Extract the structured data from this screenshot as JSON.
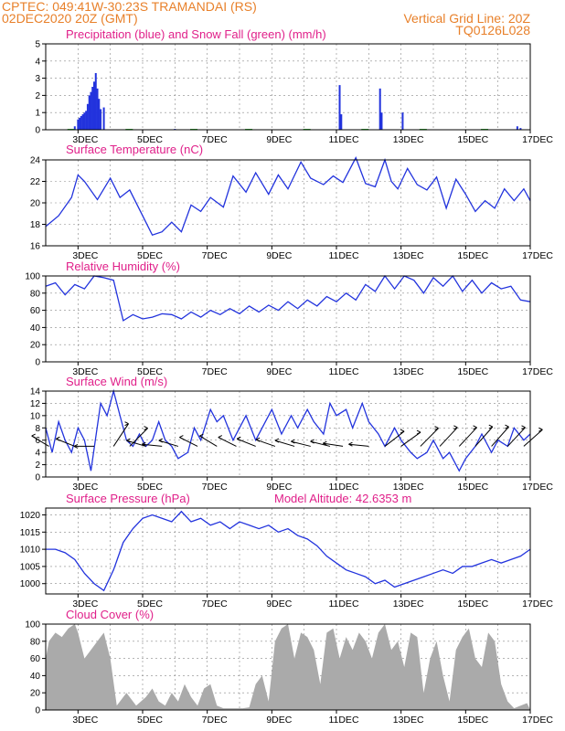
{
  "header": {
    "station_line": "CPTEC:   049:41W-30:23S   TRAMANDAI (RS)",
    "date_line": "02DEC2020 20Z (GMT)",
    "grid_note": "Vertical Grid Line: 20Z",
    "model_code": "TQ0126L028"
  },
  "colors": {
    "header": "#e8802a",
    "panel_title": "#e0208a",
    "line": "#2233dd",
    "snow": "#22aa22",
    "cloud": "#aaaaaa"
  },
  "x_ticks": [
    "3DEC",
    "5DEC",
    "7DEC",
    "9DEC",
    "11DEC",
    "13DEC",
    "15DEC",
    "17DEC"
  ],
  "chart_data": [
    {
      "type": "bar",
      "title": "Precipitation (blue) and Snow Fall (green) (mm/h)",
      "ylim": [
        0,
        5
      ],
      "yticks": [
        "0",
        "1",
        "2",
        "3",
        "4",
        "5"
      ],
      "x_range_days": [
        "02DEC2020 20Z",
        "17DEC2020 20Z"
      ],
      "series": [
        {
          "name": "Precipitation",
          "points": [
            [
              0.9,
              0.2
            ],
            [
              1.0,
              0.6
            ],
            [
              1.05,
              0.7
            ],
            [
              1.1,
              0.8
            ],
            [
              1.15,
              0.9
            ],
            [
              1.2,
              1.0
            ],
            [
              1.25,
              1.1
            ],
            [
              1.3,
              1.5
            ],
            [
              1.35,
              2.0
            ],
            [
              1.4,
              2.2
            ],
            [
              1.45,
              2.5
            ],
            [
              1.5,
              2.8
            ],
            [
              1.55,
              3.3
            ],
            [
              1.6,
              2.4
            ],
            [
              1.65,
              1.8
            ],
            [
              1.7,
              1.2
            ],
            [
              1.8,
              1.3
            ],
            [
              4.0,
              0.05
            ],
            [
              9.1,
              2.6
            ],
            [
              9.15,
              0.9
            ],
            [
              10.35,
              2.4
            ],
            [
              10.4,
              1.0
            ],
            [
              11.05,
              1.0
            ],
            [
              14.6,
              0.2
            ],
            [
              14.7,
              0.1
            ]
          ]
        },
        {
          "name": "Snow Fall",
          "points": [
            [
              0.7,
              0.05
            ],
            [
              2.5,
              0.05
            ],
            [
              4.5,
              0.05
            ],
            [
              6.2,
              0.05
            ],
            [
              8.0,
              0.05
            ],
            [
              9.8,
              0.05
            ],
            [
              11.6,
              0.05
            ],
            [
              13.5,
              0.05
            ]
          ]
        }
      ]
    },
    {
      "type": "line",
      "title": "Surface Temperature (nC)",
      "ylim": [
        16,
        24
      ],
      "yticks": [
        "16",
        "18",
        "20",
        "22",
        "24"
      ],
      "series": [
        {
          "name": "",
          "x": [
            0,
            0.4,
            0.8,
            1.0,
            1.2,
            1.6,
            2.0,
            2.3,
            2.6,
            3.0,
            3.3,
            3.6,
            3.9,
            4.2,
            4.5,
            4.8,
            5.1,
            5.5,
            5.8,
            6.2,
            6.5,
            6.9,
            7.2,
            7.5,
            7.9,
            8.2,
            8.6,
            8.9,
            9.2,
            9.6,
            9.9,
            10.2,
            10.5,
            10.7,
            10.9,
            11.2,
            11.5,
            11.8,
            12.1,
            12.4,
            12.7,
            13.0,
            13.3,
            13.6,
            13.9,
            14.2,
            14.5,
            14.8,
            15.0
          ],
          "values": [
            17.8,
            18.8,
            20.5,
            22.6,
            22.0,
            20.3,
            22.3,
            20.5,
            21.2,
            18.8,
            17.0,
            17.3,
            18.2,
            17.3,
            19.8,
            19.2,
            20.5,
            19.6,
            22.5,
            21.0,
            22.8,
            20.8,
            22.6,
            21.3,
            23.8,
            22.3,
            21.7,
            22.5,
            21.9,
            24.2,
            21.8,
            21.5,
            24.0,
            22.0,
            21.3,
            23.2,
            21.7,
            21.2,
            22.4,
            19.5,
            22.2,
            20.8,
            19.2,
            20.2,
            19.5,
            21.3,
            20.2,
            21.3,
            20.2
          ]
        }
      ]
    },
    {
      "type": "line",
      "title": "Relative Humidity (%)",
      "ylim": [
        0,
        100
      ],
      "yticks": [
        "0",
        "20",
        "40",
        "60",
        "80",
        "100"
      ],
      "series": [
        {
          "name": "",
          "x": [
            0,
            0.3,
            0.6,
            0.9,
            1.2,
            1.5,
            1.8,
            2.1,
            2.4,
            2.7,
            3.0,
            3.3,
            3.6,
            3.9,
            4.2,
            4.5,
            4.8,
            5.1,
            5.4,
            5.7,
            6.0,
            6.3,
            6.6,
            6.9,
            7.2,
            7.5,
            7.8,
            8.1,
            8.4,
            8.7,
            9.0,
            9.3,
            9.6,
            9.9,
            10.2,
            10.5,
            10.8,
            11.1,
            11.4,
            11.7,
            12.0,
            12.3,
            12.6,
            12.9,
            13.2,
            13.5,
            13.8,
            14.1,
            14.4,
            14.7,
            15.0
          ],
          "values": [
            88,
            92,
            78,
            90,
            85,
            100,
            98,
            95,
            48,
            55,
            50,
            52,
            56,
            55,
            50,
            58,
            52,
            60,
            55,
            62,
            56,
            65,
            58,
            66,
            60,
            70,
            62,
            72,
            65,
            76,
            70,
            80,
            72,
            90,
            82,
            100,
            85,
            100,
            95,
            80,
            98,
            88,
            100,
            82,
            95,
            80,
            92,
            85,
            88,
            72,
            70
          ]
        }
      ]
    },
    {
      "type": "line",
      "title": "Surface Wind (m/s)",
      "ylim": [
        0,
        14
      ],
      "yticks": [
        "0",
        "2",
        "4",
        "6",
        "8",
        "10",
        "12",
        "14"
      ],
      "series": [
        {
          "name": "",
          "x": [
            0,
            0.2,
            0.4,
            0.6,
            0.8,
            1.0,
            1.2,
            1.4,
            1.7,
            1.9,
            2.1,
            2.3,
            2.5,
            2.7,
            2.9,
            3.1,
            3.3,
            3.5,
            3.7,
            3.9,
            4.1,
            4.4,
            4.6,
            4.8,
            5.1,
            5.3,
            5.5,
            5.8,
            6.0,
            6.2,
            6.5,
            6.8,
            7.0,
            7.3,
            7.6,
            7.8,
            8.1,
            8.3,
            8.6,
            8.8,
            9.0,
            9.3,
            9.5,
            9.8,
            10.0,
            10.3,
            10.5,
            10.8,
            11.0,
            11.3,
            11.5,
            11.8,
            12.0,
            12.3,
            12.5,
            12.8,
            13.0,
            13.3,
            13.5,
            13.8,
            14.0,
            14.3,
            14.5,
            14.8,
            15.0
          ],
          "values": [
            8,
            4,
            9,
            6,
            4,
            8,
            6,
            1,
            12,
            10,
            14,
            10,
            6,
            5,
            7,
            5,
            6,
            9,
            6,
            5,
            3,
            4,
            8,
            6,
            11,
            9,
            10,
            6,
            8,
            10,
            6,
            9,
            11,
            7,
            10,
            8,
            11,
            9,
            7,
            12,
            10,
            11,
            8,
            12,
            9,
            7,
            5,
            8,
            6,
            4,
            3,
            4,
            6,
            3,
            4,
            1,
            3,
            5,
            7,
            4,
            6,
            5,
            8,
            6,
            7
          ]
        }
      ],
      "arrows_note": "wind vectors"
    },
    {
      "type": "line",
      "title": "Surface Pressure (hPa)",
      "annotation": "Model Altitude: 42.6353 m",
      "ylim": [
        997,
        1022
      ],
      "yticks": [
        "1000",
        "1005",
        "1010",
        "1015",
        "1020"
      ],
      "series": [
        {
          "name": "",
          "x": [
            0,
            0.3,
            0.6,
            0.9,
            1.2,
            1.5,
            1.8,
            2.1,
            2.4,
            2.7,
            3.0,
            3.3,
            3.6,
            3.9,
            4.2,
            4.5,
            4.8,
            5.1,
            5.4,
            5.7,
            6.0,
            6.3,
            6.6,
            6.9,
            7.2,
            7.5,
            7.8,
            8.1,
            8.4,
            8.7,
            9.0,
            9.3,
            9.6,
            9.9,
            10.2,
            10.5,
            10.8,
            11.1,
            11.4,
            11.7,
            12.0,
            12.3,
            12.6,
            12.9,
            13.2,
            13.5,
            13.8,
            14.1,
            14.4,
            14.7,
            15.0
          ],
          "values": [
            1010,
            1010,
            1009,
            1007,
            1003,
            1000,
            998,
            1004,
            1012,
            1016,
            1019,
            1020,
            1019,
            1018,
            1021,
            1018,
            1019,
            1017,
            1018,
            1016,
            1018,
            1017,
            1016,
            1017,
            1015,
            1016,
            1014,
            1013,
            1011,
            1008,
            1006,
            1004,
            1003,
            1002,
            1000,
            1001,
            999,
            1000,
            1001,
            1002,
            1003,
            1004,
            1003,
            1005,
            1005,
            1006,
            1007,
            1006,
            1007,
            1008,
            1010
          ]
        }
      ]
    },
    {
      "type": "area",
      "title": "Cloud Cover (%)",
      "ylim": [
        0,
        100
      ],
      "yticks": [
        "0",
        "20",
        "40",
        "60",
        "80",
        "100"
      ],
      "series": [
        {
          "name": "",
          "x": [
            0,
            0.1,
            0.3,
            0.5,
            0.7,
            0.9,
            1.0,
            1.2,
            1.4,
            1.6,
            1.8,
            2.0,
            2.2,
            2.5,
            2.8,
            3.1,
            3.3,
            3.5,
            3.7,
            3.9,
            4.1,
            4.3,
            4.5,
            4.7,
            4.9,
            5.1,
            5.3,
            5.5,
            5.7,
            5.9,
            6.1,
            6.3,
            6.5,
            6.7,
            6.9,
            7.1,
            7.3,
            7.5,
            7.7,
            7.9,
            8.1,
            8.3,
            8.5,
            8.7,
            8.9,
            9.1,
            9.3,
            9.5,
            9.7,
            9.9,
            10.1,
            10.3,
            10.5,
            10.7,
            10.9,
            11.1,
            11.3,
            11.5,
            11.7,
            11.9,
            12.1,
            12.3,
            12.5,
            12.7,
            12.9,
            13.1,
            13.3,
            13.5,
            13.7,
            13.9,
            14.1,
            14.3,
            14.5,
            14.7,
            14.9,
            15.0
          ],
          "values": [
            60,
            80,
            90,
            85,
            95,
            100,
            90,
            60,
            70,
            80,
            90,
            60,
            5,
            20,
            5,
            15,
            25,
            10,
            5,
            20,
            10,
            30,
            15,
            5,
            25,
            30,
            5,
            2,
            2,
            2,
            2,
            3,
            30,
            40,
            10,
            80,
            95,
            100,
            60,
            90,
            85,
            70,
            30,
            90,
            95,
            60,
            85,
            70,
            90,
            80,
            60,
            90,
            100,
            70,
            80,
            50,
            90,
            85,
            20,
            60,
            80,
            40,
            10,
            70,
            85,
            95,
            60,
            50,
            90,
            80,
            30,
            10,
            2,
            5,
            8,
            0
          ]
        }
      ]
    }
  ]
}
